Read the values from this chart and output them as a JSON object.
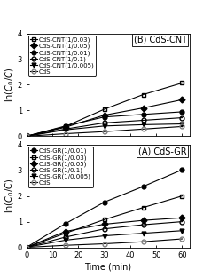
{
  "time": [
    0,
    15,
    30,
    45,
    60
  ],
  "panel_B": {
    "title": "(B) CdS-CNT",
    "ylabel": "ln($C_0$/$C$)",
    "ylim": [
      0,
      4
    ],
    "yticks": [
      0,
      1,
      2,
      3,
      4
    ],
    "series": [
      {
        "label": "CdS-CNT(1/0.03)",
        "marker": "s",
        "fillstyle": "none",
        "color": "black",
        "lw": 0.8,
        "data": [
          0,
          0.38,
          1.05,
          1.62,
          2.07
        ]
      },
      {
        "label": "CdS-CNT(1/0.05)",
        "marker": "D",
        "fillstyle": "full",
        "color": "black",
        "lw": 0.8,
        "data": [
          0,
          0.35,
          0.82,
          1.1,
          1.42
        ]
      },
      {
        "label": "CdS-CNT(1/0.01)",
        "marker": "o",
        "fillstyle": "full",
        "color": "black",
        "lw": 0.8,
        "data": [
          0,
          0.4,
          0.75,
          0.85,
          0.95
        ]
      },
      {
        "label": "CdS-CNT(1/0.1)",
        "marker": "o",
        "fillstyle": "none",
        "color": "black",
        "lw": 0.8,
        "data": [
          0,
          0.28,
          0.52,
          0.62,
          0.72
        ]
      },
      {
        "label": "CdS-CNT(1/0.005)",
        "marker": "v",
        "fillstyle": "full",
        "color": "black",
        "lw": 0.8,
        "data": [
          0,
          0.25,
          0.4,
          0.45,
          0.48
        ]
      },
      {
        "label": "CdS",
        "marker": "o",
        "fillstyle": "none",
        "color": "black",
        "lw": 0.8,
        "mec": "gray",
        "mfc": "none",
        "data": [
          0,
          0.1,
          0.18,
          0.28,
          0.38
        ]
      }
    ]
  },
  "panel_A": {
    "title": "(A) CdS-GR",
    "ylabel": "ln($C_0$/$C$)",
    "xlabel": "Time (min)",
    "ylim": [
      0,
      4
    ],
    "yticks": [
      0,
      1,
      2,
      3,
      4
    ],
    "series": [
      {
        "label": "CdS-GR(1/0.01)",
        "marker": "o",
        "fillstyle": "full",
        "color": "black",
        "lw": 0.8,
        "data": [
          0,
          0.92,
          1.76,
          2.37,
          3.02
        ]
      },
      {
        "label": "CdS-GR(1/0.03)",
        "marker": "s",
        "fillstyle": "none",
        "color": "black",
        "lw": 0.8,
        "data": [
          0,
          0.55,
          1.08,
          1.55,
          2.0
        ]
      },
      {
        "label": "CdS-GR(1/0.05)",
        "marker": "D",
        "fillstyle": "full",
        "color": "black",
        "lw": 0.8,
        "data": [
          0,
          0.62,
          0.9,
          1.05,
          1.15
        ]
      },
      {
        "label": "CdS-GR(1/0.1)",
        "marker": "o",
        "fillstyle": "none",
        "color": "black",
        "lw": 0.8,
        "data": [
          0,
          0.4,
          0.72,
          0.88,
          1.0
        ]
      },
      {
        "label": "CdS-GR(1/0.005)",
        "marker": "v",
        "fillstyle": "full",
        "color": "black",
        "lw": 0.8,
        "data": [
          0,
          0.28,
          0.45,
          0.55,
          0.65
        ]
      },
      {
        "label": "CdS",
        "marker": "o",
        "fillstyle": "none",
        "color": "black",
        "lw": 0.8,
        "mec": "gray",
        "mfc": "none",
        "data": [
          0,
          0.08,
          0.14,
          0.22,
          0.33
        ]
      }
    ]
  },
  "xticks": [
    0,
    10,
    20,
    30,
    40,
    50,
    60
  ],
  "xlim": [
    0,
    63
  ],
  "background": "#ffffff",
  "fontsize_tick": 6,
  "fontsize_label": 7,
  "fontsize_legend": 5,
  "fontsize_title": 7,
  "markersize": 3.5
}
